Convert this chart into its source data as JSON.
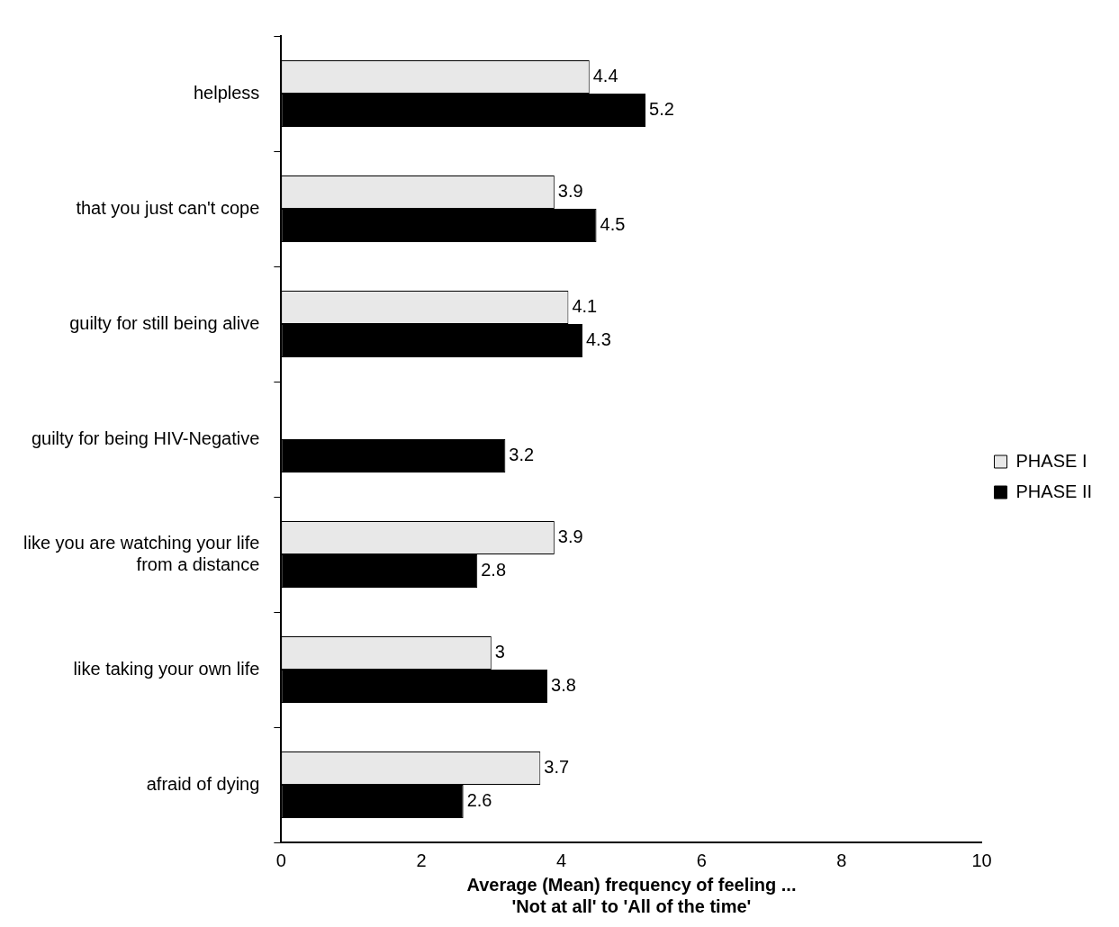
{
  "chart_data": {
    "type": "bar",
    "orientation": "horizontal",
    "xlabel": "Average (Mean) frequency of feeling ...\n'Not at all' to 'All of the time'",
    "categories": [
      "helpless",
      "that you just can't cope",
      "guilty for still being alive",
      "guilty for being HIV-Negative",
      "like you are watching your life from a distance",
      "like taking your own life",
      "afraid of dying"
    ],
    "series": [
      {
        "name": "PHASE I",
        "color": "#e8e8e8",
        "values": [
          4.4,
          3.9,
          4.1,
          null,
          3.9,
          3,
          3.7
        ]
      },
      {
        "name": "PHASE II",
        "color": "#000000",
        "values": [
          5.2,
          4.5,
          4.3,
          3.2,
          2.8,
          3.8,
          2.6
        ]
      }
    ],
    "xlim": [
      0,
      10
    ],
    "xticks": [
      0,
      2,
      4,
      6,
      8,
      10
    ],
    "grid": false,
    "legend": "right",
    "data_labels": true
  }
}
